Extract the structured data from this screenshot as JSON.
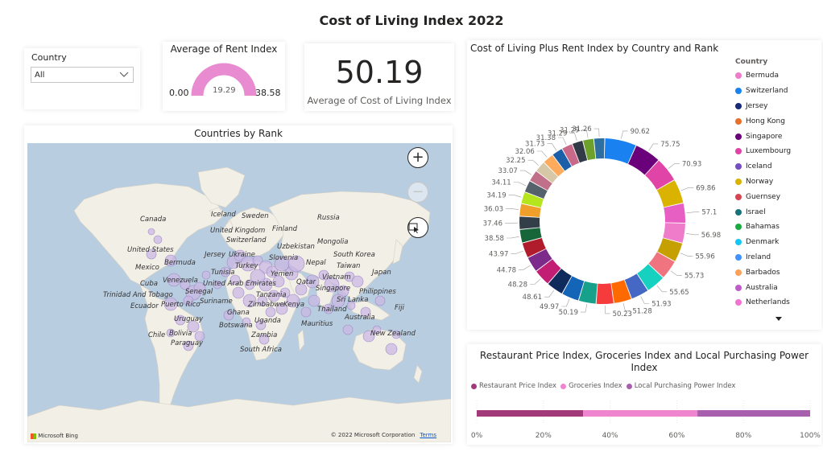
{
  "title": "Cost of Living Index 2022",
  "slicer": {
    "label": "Country",
    "value": "All"
  },
  "gauge": {
    "title": "Average of Rent Index",
    "min": "0.00",
    "max": "38.58",
    "value": "19.29",
    "fill_fraction": 1.0,
    "color": "#e98bd0"
  },
  "kpi": {
    "value": "50.19",
    "label": "Average of Cost of Living Index"
  },
  "map": {
    "title": "Countries by Rank",
    "labels": [
      {
        "text": "Canada"
      },
      {
        "text": "Iceland"
      },
      {
        "text": "Sweden"
      },
      {
        "text": "Russia"
      },
      {
        "text": "Finland"
      },
      {
        "text": "United Kingdom"
      },
      {
        "text": "Switzerland"
      },
      {
        "text": "Mongolia"
      },
      {
        "text": "United States"
      },
      {
        "text": "Uzbekistan"
      },
      {
        "text": "Jersey"
      },
      {
        "text": "Ukraine"
      },
      {
        "text": "Slovenia"
      },
      {
        "text": "South Korea"
      },
      {
        "text": "Bermuda"
      },
      {
        "text": "Mexico"
      },
      {
        "text": "Turkey"
      },
      {
        "text": "Nepal"
      },
      {
        "text": "Taiwan"
      },
      {
        "text": "Japan"
      },
      {
        "text": "Tunisia"
      },
      {
        "text": "Yemen"
      },
      {
        "text": "Vietnam"
      },
      {
        "text": "Cuba"
      },
      {
        "text": "Venezuela"
      },
      {
        "text": "United Arab Emirates"
      },
      {
        "text": "Qatar"
      },
      {
        "text": "Singapore"
      },
      {
        "text": "Philippines"
      },
      {
        "text": "Senegal"
      },
      {
        "text": "Trinidad And Tobago"
      },
      {
        "text": "Tanzania"
      },
      {
        "text": "Sri Lanka"
      },
      {
        "text": "Suriname"
      },
      {
        "text": "Zimbabwe"
      },
      {
        "text": "Kenya"
      },
      {
        "text": "Ecuador"
      },
      {
        "text": "Puerto Rico"
      },
      {
        "text": "Ghana"
      },
      {
        "text": "Thailand"
      },
      {
        "text": "Fiji"
      },
      {
        "text": "Uruguay"
      },
      {
        "text": "Australia"
      },
      {
        "text": "Uganda"
      },
      {
        "text": "Botswana"
      },
      {
        "text": "Mauritius"
      },
      {
        "text": "Chile"
      },
      {
        "text": "Bolivia"
      },
      {
        "text": "Zambia"
      },
      {
        "text": "New Zealand"
      },
      {
        "text": "Paraguay"
      },
      {
        "text": "South Africa"
      }
    ],
    "zoom_in": "+",
    "zoom_out": "−",
    "attribution": "Microsoft Bing",
    "copyright": "© 2022 Microsoft Corporation",
    "terms": "Terms",
    "bubble_color": "#c9b8e3"
  },
  "chart_data": [
    {
      "type": "pie",
      "title": "Cost of Living Plus Rent Index by Country and Rank",
      "legend_title": "Country",
      "legend": [
        {
          "name": "Bermuda",
          "color": "#ef7bcb"
        },
        {
          "name": "Switzerland",
          "color": "#1982f0"
        },
        {
          "name": "Jersey",
          "color": "#1a2a7a"
        },
        {
          "name": "Hong Kong",
          "color": "#e8702a"
        },
        {
          "name": "Singapore",
          "color": "#6b007b"
        },
        {
          "name": "Luxembourg",
          "color": "#e044a7"
        },
        {
          "name": "Iceland",
          "color": "#744ec2"
        },
        {
          "name": "Norway",
          "color": "#d9b300"
        },
        {
          "name": "Guernsey",
          "color": "#d64550"
        },
        {
          "name": "Israel",
          "color": "#197278"
        },
        {
          "name": "Bahamas",
          "color": "#1aab40"
        },
        {
          "name": "Denmark",
          "color": "#15c6f4"
        },
        {
          "name": "Ireland",
          "color": "#4092ff"
        },
        {
          "name": "Barbados",
          "color": "#ffa058"
        },
        {
          "name": "Australia",
          "color": "#be5dc9"
        },
        {
          "name": "Netherlands",
          "color": "#f472d0"
        }
      ],
      "values": [
        90.62,
        75.75,
        70.93,
        69.86,
        57.1,
        56.98,
        55.96,
        55.73,
        55.65,
        51.93,
        51.28,
        50.23,
        50.19,
        49.97,
        48.61,
        48.28,
        44.78,
        43.97,
        38.58,
        37.46,
        36.03,
        34.19,
        34.11,
        33.07,
        32.25,
        32.06,
        31.73,
        31.38,
        31.29,
        31.29,
        31.26
      ],
      "value_labels": [
        "90.62",
        "75.75",
        "70.93",
        "69.86",
        "57.1",
        "56.98",
        "55.96",
        "55.73",
        "55.65",
        "51.93",
        "51.28",
        "50.23",
        "50.19",
        "49.97",
        "48.61",
        "48.28",
        "44.78",
        "43.97",
        "38.58",
        "37.46",
        "36.03",
        "34.19",
        "34.11",
        "33.07",
        "32.25",
        "32.06",
        "31.73",
        "31.38",
        "31.29",
        "31.29",
        "31.26"
      ],
      "colors": [
        "#1982f0",
        "#6b007b",
        "#e044a7",
        "#d9b300",
        "#e85fc4",
        "#ef7bcb",
        "#c6a000",
        "#f07480",
        "#17d1c0",
        "#4668c5",
        "#ff6a00",
        "#f53b3b",
        "#17a18a",
        "#1465b8",
        "#0f2b5b",
        "#c21e73",
        "#7d2b8b",
        "#b01c2c",
        "#17663a",
        "#333f48",
        "#f0a02a",
        "#b5e61d",
        "#56626b",
        "#c07088",
        "#d6c8a6",
        "#ffab5e",
        "#1a5fa8",
        "#c9698a",
        "#333a47",
        "#6ea12b",
        "#2d6fa1"
      ]
    },
    {
      "type": "bar",
      "stacked": "100%",
      "title": "Restaurant Price Index, Groceries Index and Local Purchasing Power Index",
      "series": [
        {
          "name": "Restaurant Price Index",
          "values": [
            31.9
          ],
          "color": "#a23a7a"
        },
        {
          "name": "Groceries Index",
          "values": [
            34.3
          ],
          "color": "#ef85cf"
        },
        {
          "name": "Local Purchasing Power Index",
          "values": [
            33.8
          ],
          "color": "#a85fae"
        }
      ],
      "xticks": [
        "0%",
        "20%",
        "40%",
        "60%",
        "80%",
        "100%"
      ],
      "xlim": [
        0,
        100
      ]
    }
  ]
}
